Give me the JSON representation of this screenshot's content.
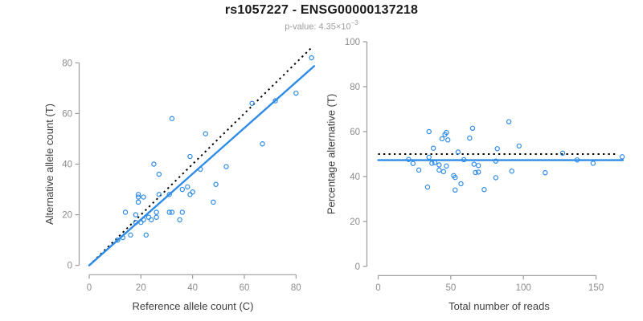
{
  "header": {
    "title": "rs1057227 - ENSG00000137218",
    "pvalue_prefix": "p-value: ",
    "pvalue_mantissa": "4.35×10",
    "pvalue_exponent": "−3"
  },
  "colors": {
    "point_blue": "#2E8BE6",
    "line_blue": "#2E8BE6",
    "dotted_black": "#000000",
    "axis_gray": "#9b9b9b",
    "tick_label_gray": "#8c8c8c",
    "axis_title_gray": "#3d3d3d"
  },
  "chart_data": [
    {
      "type": "scatter",
      "id": "allele-counts",
      "xlabel": "Reference allele count (C)",
      "ylabel": "Alternative allele count (T)",
      "xlim": [
        0,
        80
      ],
      "ylim": [
        0,
        80
      ],
      "xticks": [
        0,
        20,
        40,
        60,
        80
      ],
      "yticks": [
        0,
        20,
        40,
        60,
        80
      ],
      "grid": false,
      "legend": "none",
      "points": [
        [
          11,
          10
        ],
        [
          13,
          11
        ],
        [
          16,
          12
        ],
        [
          22,
          12
        ],
        [
          14,
          21
        ],
        [
          18,
          20
        ],
        [
          18,
          17
        ],
        [
          20,
          17
        ],
        [
          21,
          18
        ],
        [
          23,
          19
        ],
        [
          24,
          18
        ],
        [
          26,
          19
        ],
        [
          26,
          21
        ],
        [
          31,
          21
        ],
        [
          32,
          21
        ],
        [
          36,
          21
        ],
        [
          35,
          18
        ],
        [
          19,
          25
        ],
        [
          19,
          27
        ],
        [
          19,
          28
        ],
        [
          21,
          27
        ],
        [
          27,
          28
        ],
        [
          31,
          28
        ],
        [
          36,
          30
        ],
        [
          38,
          31
        ],
        [
          39,
          28
        ],
        [
          40,
          29
        ],
        [
          25,
          40
        ],
        [
          27,
          36
        ],
        [
          32,
          58
        ],
        [
          39,
          43
        ],
        [
          43,
          38
        ],
        [
          45,
          52
        ],
        [
          48,
          25
        ],
        [
          49,
          32
        ],
        [
          53,
          39
        ],
        [
          63,
          64
        ],
        [
          67,
          48
        ],
        [
          72,
          65
        ],
        [
          80,
          68
        ],
        [
          86,
          82
        ]
      ],
      "lines": [
        {
          "name": "identity-line",
          "style": "dotted",
          "color": "black",
          "from": [
            0,
            0
          ],
          "to": [
            86.5,
            86.5
          ]
        },
        {
          "name": "fit-line",
          "style": "solid",
          "color": "blue",
          "from": [
            0,
            0
          ],
          "to": [
            87,
            78.7
          ]
        }
      ]
    },
    {
      "type": "scatter",
      "id": "percentage-alternative",
      "xlabel": "Total number of reads",
      "ylabel": "Percentage alternative (T)",
      "xlim": [
        0,
        150
      ],
      "ylim": [
        0,
        100
      ],
      "xticks": [
        0,
        50,
        100,
        150
      ],
      "yticks": [
        0,
        20,
        40,
        60,
        80,
        100
      ],
      "grid": false,
      "legend": "none",
      "points": [
        [
          21,
          47.6
        ],
        [
          24,
          45.8
        ],
        [
          28,
          42.9
        ],
        [
          34,
          35.3
        ],
        [
          35,
          60.0
        ],
        [
          38,
          52.6
        ],
        [
          35,
          48.6
        ],
        [
          37,
          45.9
        ],
        [
          39,
          46.2
        ],
        [
          42,
          45.2
        ],
        [
          42,
          42.9
        ],
        [
          45,
          42.2
        ],
        [
          47,
          44.7
        ],
        [
          52,
          40.4
        ],
        [
          53,
          39.6
        ],
        [
          57,
          36.8
        ],
        [
          53,
          34.0
        ],
        [
          44,
          56.8
        ],
        [
          46,
          58.7
        ],
        [
          47,
          59.6
        ],
        [
          48,
          56.3
        ],
        [
          55,
          50.9
        ],
        [
          59,
          47.5
        ],
        [
          66,
          45.5
        ],
        [
          69,
          44.9
        ],
        [
          67,
          41.8
        ],
        [
          69,
          42.0
        ],
        [
          65,
          61.5
        ],
        [
          63,
          57.1
        ],
        [
          90,
          64.4
        ],
        [
          82,
          52.4
        ],
        [
          81,
          46.9
        ],
        [
          97,
          53.6
        ],
        [
          73,
          34.2
        ],
        [
          81,
          39.5
        ],
        [
          92,
          42.4
        ],
        [
          127,
          50.4
        ],
        [
          115,
          41.7
        ],
        [
          137,
          47.4
        ],
        [
          148,
          45.9
        ],
        [
          168,
          48.8
        ]
      ],
      "lines": [
        {
          "name": "null-50pct-line",
          "style": "dotted",
          "color": "black",
          "from": [
            0,
            50
          ],
          "to": [
            165,
            50
          ]
        },
        {
          "name": "fit-line",
          "style": "solid",
          "color": "blue",
          "from": [
            0,
            47.3
          ],
          "to": [
            168.5,
            47.3
          ]
        }
      ]
    }
  ]
}
